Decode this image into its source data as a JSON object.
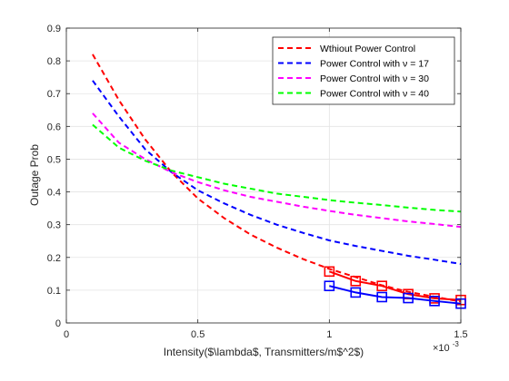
{
  "chart_data": {
    "type": "line",
    "title": "",
    "xlabel": "Intensity($\\lambda$, Transmitters/m$^2$)",
    "ylabel": "Outage Prob",
    "x_exponent_label": "×10",
    "x_exponent_power": "-3",
    "xlim": [
      0,
      1.5
    ],
    "ylim": [
      0,
      0.9
    ],
    "xticks": [
      "0",
      "0.5",
      "1",
      "1.5"
    ],
    "yticks": [
      "0",
      "0.1",
      "0.2",
      "0.3",
      "0.4",
      "0.5",
      "0.6",
      "0.7",
      "0.8",
      "0.9"
    ],
    "grid": true,
    "legend_position": "top-right",
    "series": [
      {
        "name": "Wthiout Power Control",
        "color": "#ff0000",
        "style": "dashed",
        "x": [
          0.1,
          0.2,
          0.3,
          0.4,
          0.5,
          0.6,
          0.7,
          0.8,
          0.9,
          1.0,
          1.1,
          1.2,
          1.3,
          1.4,
          1.5
        ],
        "values": [
          0.82,
          0.68,
          0.56,
          0.46,
          0.38,
          0.32,
          0.27,
          0.23,
          0.195,
          0.165,
          0.14,
          0.115,
          0.095,
          0.08,
          0.065
        ]
      },
      {
        "name": "Power Control with ν = 17",
        "color": "#0000ff",
        "style": "dashed",
        "x": [
          0.1,
          0.2,
          0.3,
          0.4,
          0.5,
          0.6,
          0.7,
          0.8,
          0.9,
          1.0,
          1.1,
          1.2,
          1.3,
          1.4,
          1.5
        ],
        "values": [
          0.74,
          0.63,
          0.53,
          0.46,
          0.405,
          0.365,
          0.33,
          0.3,
          0.275,
          0.252,
          0.235,
          0.22,
          0.205,
          0.193,
          0.18
        ]
      },
      {
        "name": "Power Control with ν = 30",
        "color": "#ff00ff",
        "style": "dashed",
        "x": [
          0.1,
          0.2,
          0.3,
          0.4,
          0.5,
          0.6,
          0.7,
          0.8,
          0.9,
          1.0,
          1.1,
          1.2,
          1.3,
          1.4,
          1.5
        ],
        "values": [
          0.64,
          0.55,
          0.5,
          0.46,
          0.43,
          0.405,
          0.385,
          0.37,
          0.355,
          0.342,
          0.33,
          0.32,
          0.31,
          0.302,
          0.293
        ]
      },
      {
        "name": "Power Control with ν = 40",
        "color": "#00ff00",
        "style": "dashed",
        "x": [
          0.1,
          0.2,
          0.3,
          0.4,
          0.5,
          0.6,
          0.7,
          0.8,
          0.9,
          1.0,
          1.1,
          1.2,
          1.3,
          1.4,
          1.5
        ],
        "values": [
          0.605,
          0.535,
          0.495,
          0.465,
          0.445,
          0.425,
          0.41,
          0.395,
          0.385,
          0.375,
          0.367,
          0.36,
          0.352,
          0.345,
          0.34
        ]
      },
      {
        "name": "",
        "color": "#ff0000",
        "style": "solid",
        "marker": "square",
        "x": [
          1.0,
          1.1,
          1.2,
          1.3,
          1.4,
          1.5
        ],
        "values": [
          0.157,
          0.128,
          0.113,
          0.088,
          0.075,
          0.07
        ]
      },
      {
        "name": "",
        "color": "#0000ff",
        "style": "solid",
        "marker": "square",
        "x": [
          1.0,
          1.1,
          1.2,
          1.3,
          1.4,
          1.5
        ],
        "values": [
          0.113,
          0.093,
          0.079,
          0.076,
          0.067,
          0.059
        ]
      }
    ]
  }
}
